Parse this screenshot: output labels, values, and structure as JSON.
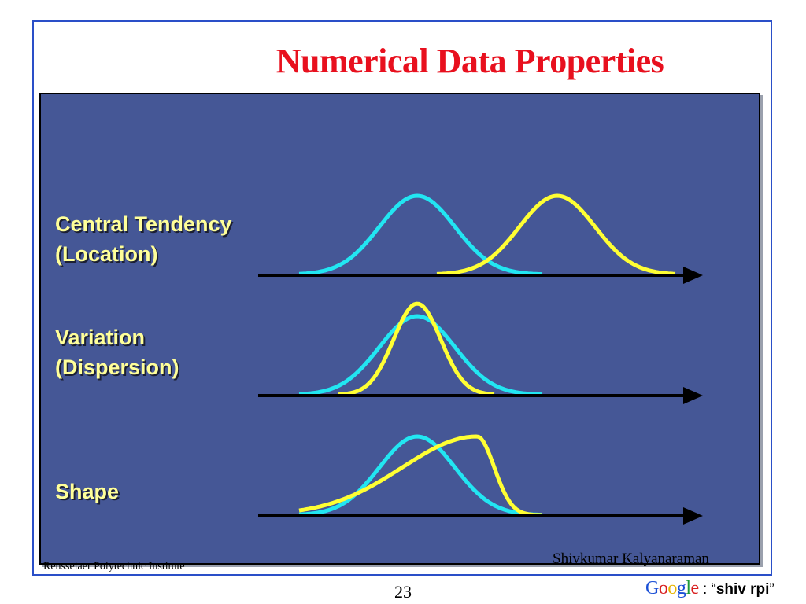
{
  "slide": {
    "title": "Numerical Data Properties",
    "page_number": "23",
    "footer_left": "Rensselaer Polytechnic Institute",
    "footer_right": "Shivkumar Kalyanaraman",
    "google_query": {
      "logo_letters": [
        "G",
        "o",
        "o",
        "g",
        "l",
        "e"
      ],
      "separator": " : “",
      "query": "shiv rpi",
      "closing": "”"
    }
  },
  "rows": [
    {
      "label_line1": "Central Tendency",
      "label_line2": "(Location)"
    },
    {
      "label_line1": "Variation",
      "label_line2": "(Dispersion)"
    },
    {
      "label_line1": "Shape",
      "label_line2": ""
    }
  ],
  "colors": {
    "title": "#e8101e",
    "panel": "#455796",
    "label_text": "#ffff99",
    "curve_cyan": "#22e6f2",
    "curve_yellow": "#ffff33",
    "axis": "#000000",
    "border": "#2a4fc8"
  }
}
